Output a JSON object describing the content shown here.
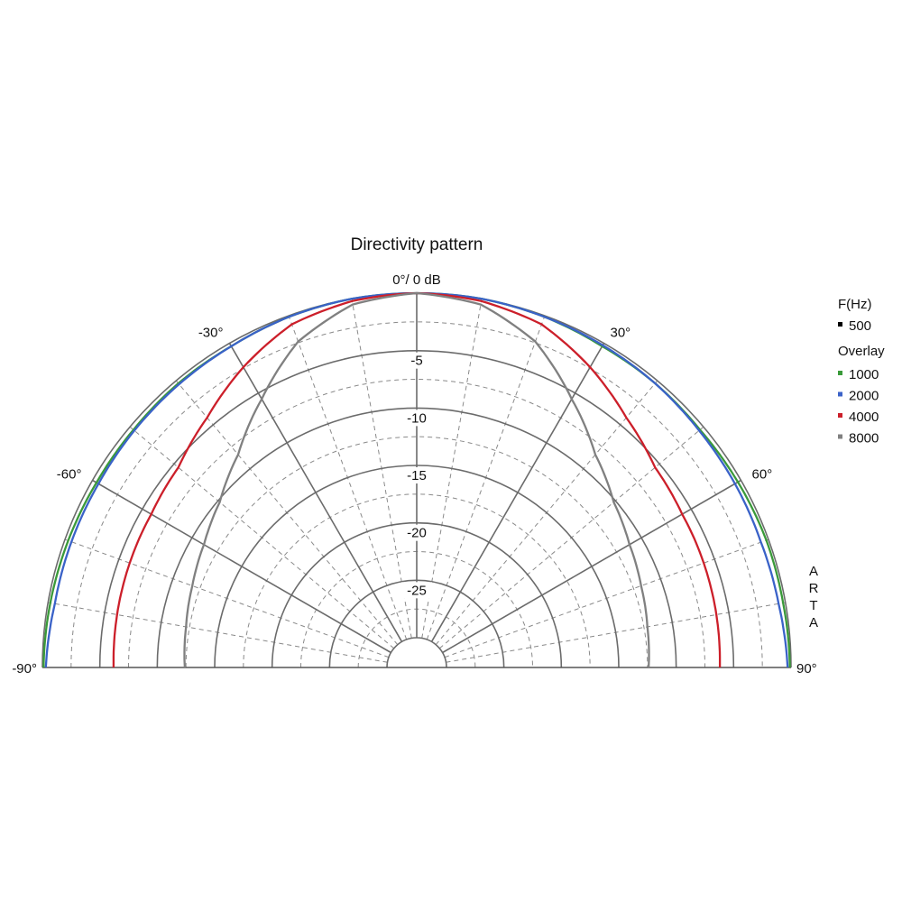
{
  "chart_data": {
    "type": "polar-line",
    "title": "Directivity pattern",
    "center_label": "0°/ 0 dB",
    "angle_range": [
      -90,
      90
    ],
    "radius_range_db": [
      -30,
      0
    ],
    "angle_ticks": [
      {
        "angle": -90,
        "label": "-90°"
      },
      {
        "angle": -60,
        "label": "-60°"
      },
      {
        "angle": -30,
        "label": "-30°"
      },
      {
        "angle": 30,
        "label": "30°"
      },
      {
        "angle": 60,
        "label": "60°"
      },
      {
        "angle": 90,
        "label": "90°"
      }
    ],
    "radial_ticks": [
      {
        "value": -5,
        "label": "-5"
      },
      {
        "value": -10,
        "label": "-10"
      },
      {
        "value": -15,
        "label": "-15"
      },
      {
        "value": -20,
        "label": "-20"
      },
      {
        "value": -25,
        "label": "-25"
      }
    ],
    "side_label": [
      "A",
      "R",
      "T",
      "A"
    ],
    "legend": {
      "primary_header": "F(Hz)",
      "primary": [
        {
          "name": "500",
          "color": "#000000"
        }
      ],
      "overlay_header": "Overlay",
      "overlay": [
        {
          "name": "1000",
          "color": "#3a9a3a"
        },
        {
          "name": "2000",
          "color": "#3a62c8"
        },
        {
          "name": "4000",
          "color": "#cc1f2a"
        },
        {
          "name": "8000",
          "color": "#808080"
        }
      ]
    },
    "series": [
      {
        "name": "1000",
        "color": "#3a9a3a",
        "angles": [
          -90,
          -80,
          -70,
          -60,
          -50,
          -40,
          -30,
          -20,
          -10,
          0,
          10,
          20,
          30,
          40,
          50,
          60,
          70,
          80,
          90
        ],
        "db": [
          -0.1,
          -0.2,
          -0.3,
          -0.4,
          -0.4,
          -0.3,
          -0.3,
          -0.1,
          0,
          0,
          0,
          -0.1,
          -0.3,
          -0.3,
          -0.4,
          -0.3,
          -0.2,
          -0.2,
          -0.1
        ]
      },
      {
        "name": "2000",
        "color": "#3a62c8",
        "angles": [
          -90,
          -80,
          -70,
          -60,
          -50,
          -40,
          -30,
          -20,
          -10,
          0,
          10,
          20,
          30,
          40,
          50,
          60,
          70,
          80,
          90
        ],
        "db": [
          -0.3,
          -0.6,
          -0.6,
          -0.6,
          -0.5,
          -0.4,
          -0.3,
          -0.1,
          0,
          0,
          0,
          -0.1,
          -0.2,
          -0.3,
          -0.5,
          -0.6,
          -0.7,
          -0.6,
          -0.3
        ]
      },
      {
        "name": "4000",
        "color": "#cc1f2a",
        "angles": [
          -90,
          -80,
          -70,
          -60,
          -50,
          -40,
          -30,
          -20,
          -10,
          0,
          10,
          20,
          30,
          40,
          50,
          60,
          70,
          80,
          90
        ],
        "db": [
          -6.2,
          -6.1,
          -6.0,
          -5.9,
          -5.5,
          -4.2,
          -2.4,
          -0.8,
          -0.2,
          0,
          -0.2,
          -0.8,
          -2.4,
          -4.2,
          -5.5,
          -5.9,
          -6.0,
          -6.1,
          -6.2
        ]
      },
      {
        "name": "8000",
        "color": "#808080",
        "angles": [
          -90,
          -80,
          -70,
          -60,
          -50,
          -40,
          -30,
          -20,
          -10,
          0,
          10,
          20,
          30,
          40,
          50,
          60,
          70,
          80,
          90
        ],
        "db": [
          -12.4,
          -12.2,
          -11.8,
          -11.2,
          -10.2,
          -8.4,
          -5.6,
          -2.4,
          -0.5,
          0,
          -0.5,
          -2.4,
          -5.6,
          -8.4,
          -10.2,
          -11.2,
          -11.8,
          -12.2,
          -12.4
        ]
      }
    ]
  }
}
